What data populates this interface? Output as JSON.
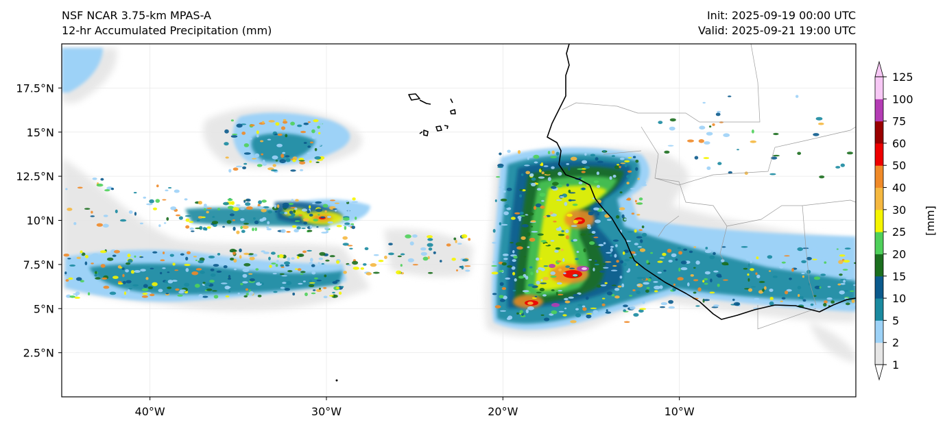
{
  "header": {
    "model": "NSF NCAR 3.75-km MPAS-A",
    "field": "12-hr Accumulated Precipitation (mm)",
    "init": "Init: 2025-09-19 00:00 UTC",
    "valid": "Valid: 2025-09-21 19:00 UTC"
  },
  "map": {
    "lon_labels": [
      "40°W",
      "30°W",
      "20°W",
      "10°W"
    ],
    "lat_labels": [
      "17.5°N",
      "15°N",
      "12.5°N",
      "10°N",
      "7.5°N",
      "5°N",
      "2.5°N"
    ],
    "lon_ticks": [
      -40,
      -30,
      -20,
      -10
    ],
    "lat_ticks": [
      17.5,
      15,
      12.5,
      10,
      7.5,
      5,
      2.5
    ],
    "extent": {
      "lon": [
        -45,
        0
      ],
      "lat": [
        0,
        20
      ]
    },
    "gridlines": true,
    "ocean_color": "#ffffff",
    "coastline_color": "#000000",
    "border_color": "#9a9a9a"
  },
  "colorbar": {
    "unit_label": "[mm]",
    "levels": [
      "1",
      "2",
      "5",
      "10",
      "15",
      "20",
      "25",
      "30",
      "40",
      "50",
      "60",
      "75",
      "100",
      "125"
    ],
    "colors": [
      "#e6e6e6",
      "#9dd2f7",
      "#1a8aa0",
      "#0b5a8c",
      "#1b6e1e",
      "#4fd05a",
      "#f5f500",
      "#f5b840",
      "#f08a28",
      "#ee0000",
      "#9a0000",
      "#b43cb4",
      "#f7c8f5"
    ],
    "extend": "both"
  }
}
